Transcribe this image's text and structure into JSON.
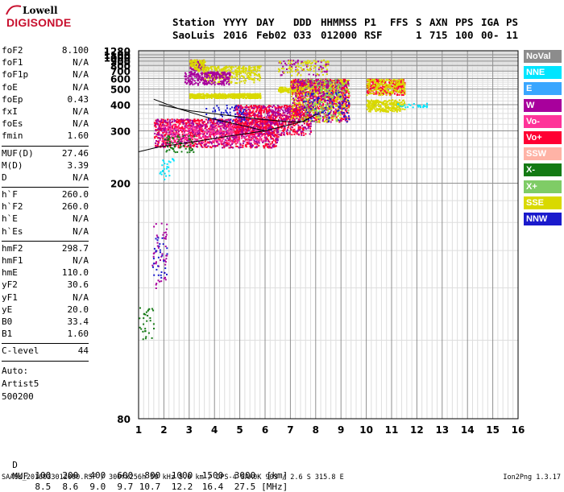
{
  "logo": {
    "line1": "Lowell",
    "line2": "DIGISONDE"
  },
  "header": {
    "row1": [
      "Station",
      "YYYY",
      "DAY",
      "DDD",
      "HHMMSS",
      "P1",
      "FFS",
      "S",
      "AXN",
      "PPS",
      "IGA",
      "PS"
    ],
    "row2": [
      "SaoLuis",
      "2016",
      "Feb02",
      "033",
      "012000",
      "RSF",
      "",
      "1",
      "715",
      "100",
      "00-",
      "11"
    ]
  },
  "parameters": {
    "group1": [
      {
        "key": "foF2",
        "value": "8.100"
      },
      {
        "key": "foF1",
        "value": "N/A"
      },
      {
        "key": "foF1p",
        "value": "N/A"
      },
      {
        "key": "foE",
        "value": "N/A"
      },
      {
        "key": "foEp",
        "value": "0.43"
      },
      {
        "key": "fxI",
        "value": "N/A"
      },
      {
        "key": "foEs",
        "value": "N/A"
      },
      {
        "key": "fmin",
        "value": "1.60"
      }
    ],
    "group2": [
      {
        "key": "MUF(D)",
        "value": "27.46"
      },
      {
        "key": "M(D)",
        "value": "3.39"
      },
      {
        "key": "D",
        "value": "N/A"
      }
    ],
    "group3": [
      {
        "key": "h`F",
        "value": "260.0"
      },
      {
        "key": "h`F2",
        "value": "260.0"
      },
      {
        "key": "h`E",
        "value": "N/A"
      },
      {
        "key": "h`Es",
        "value": "N/A"
      }
    ],
    "group4": [
      {
        "key": "hmF2",
        "value": "298.7"
      },
      {
        "key": "hmF1",
        "value": "N/A"
      },
      {
        "key": "hmE",
        "value": "110.0"
      },
      {
        "key": "yF2",
        "value": "30.6"
      },
      {
        "key": "yF1",
        "value": "N/A"
      },
      {
        "key": "yE",
        "value": "20.0"
      },
      {
        "key": "B0",
        "value": "33.4"
      },
      {
        "key": "B1",
        "value": "1.60"
      }
    ],
    "group5": [
      {
        "key": "C-level",
        "value": "44"
      }
    ],
    "auto": [
      "Auto:",
      "Artist5",
      "500200"
    ]
  },
  "legend": [
    {
      "label": "NoVal",
      "color": "#8c8c8c"
    },
    {
      "label": "NNE",
      "color": "#00e5ff"
    },
    {
      "label": "E",
      "color": "#39a6ff"
    },
    {
      "label": "W",
      "color": "#a8009c"
    },
    {
      "label": "Vo-",
      "color": "#ff3399"
    },
    {
      "label": "Vo+",
      "color": "#ff0033"
    },
    {
      "label": "SSW",
      "color": "#ffb3a6"
    },
    {
      "label": "X-",
      "color": "#147a14"
    },
    {
      "label": "X+",
      "color": "#7fcc66"
    },
    {
      "label": "SSE",
      "color": "#d9d900"
    },
    {
      "label": "NNW",
      "color": "#1a1acc"
    }
  ],
  "chart_data": {
    "type": "scatter",
    "x_ticks": [
      1,
      2,
      3,
      4,
      5,
      6,
      7,
      8,
      9,
      10,
      11,
      12,
      13,
      14,
      15,
      16
    ],
    "xlim": [
      1,
      16
    ],
    "y_ticks": [
      80,
      200,
      300,
      400,
      500,
      600,
      700,
      800,
      900,
      1000,
      1100,
      1280
    ],
    "ylim": [
      80,
      1280
    ],
    "y_scale": "reciprocal",
    "grid": true,
    "x_minor_per_major": 5,
    "y_minor_step": 20,
    "clusters": [
      {
        "color": "SSE",
        "x": [
          3.0,
          5.8
        ],
        "y": [
          440,
          470
        ],
        "n": 500
      },
      {
        "color": "SSE",
        "x": [
          3.5,
          5.8
        ],
        "y": [
          560,
          800
        ],
        "n": 300
      },
      {
        "color": "W",
        "x": [
          2.8,
          4.6
        ],
        "y": [
          540,
          700
        ],
        "n": 250
      },
      {
        "color": "W",
        "x": [
          3.0,
          3.6
        ],
        "y": [
          700,
          950
        ],
        "n": 80
      },
      {
        "color": "SSE",
        "x": [
          3.0,
          3.6
        ],
        "y": [
          700,
          950
        ],
        "n": 90
      },
      {
        "color": "Vo+",
        "x": [
          1.6,
          6.5
        ],
        "y": [
          260,
          340
        ],
        "n": 900
      },
      {
        "color": "W",
        "x": [
          1.6,
          6.5
        ],
        "y": [
          260,
          340
        ],
        "n": 500
      },
      {
        "color": "Vo-",
        "x": [
          1.8,
          6.0
        ],
        "y": [
          270,
          320
        ],
        "n": 300
      },
      {
        "color": "Vo+",
        "x": [
          4.8,
          7.8
        ],
        "y": [
          290,
          400
        ],
        "n": 600
      },
      {
        "color": "W",
        "x": [
          4.8,
          7.8
        ],
        "y": [
          290,
          400
        ],
        "n": 250
      },
      {
        "color": "SSE",
        "x": [
          6.5,
          7.5
        ],
        "y": [
          480,
          520
        ],
        "n": 150
      },
      {
        "color": "Vo+",
        "x": [
          7.0,
          9.3
        ],
        "y": [
          330,
          600
        ],
        "n": 700
      },
      {
        "color": "SSE",
        "x": [
          7.0,
          9.3
        ],
        "y": [
          330,
          600
        ],
        "n": 450
      },
      {
        "color": "W",
        "x": [
          7.0,
          9.3
        ],
        "y": [
          330,
          600
        ],
        "n": 300
      },
      {
        "color": "X+",
        "x": [
          7.5,
          9.3
        ],
        "y": [
          330,
          600
        ],
        "n": 150
      },
      {
        "color": "NNW",
        "x": [
          7.5,
          9.3
        ],
        "y": [
          330,
          480
        ],
        "n": 80
      },
      {
        "color": "Vo+",
        "x": [
          10.0,
          11.5
        ],
        "y": [
          460,
          600
        ],
        "n": 250
      },
      {
        "color": "SSE",
        "x": [
          10.0,
          11.5
        ],
        "y": [
          460,
          600
        ],
        "n": 200
      },
      {
        "color": "SSE",
        "x": [
          10.0,
          11.5
        ],
        "y": [
          370,
          430
        ],
        "n": 250
      },
      {
        "color": "W",
        "x": [
          6.5,
          8.5
        ],
        "y": [
          640,
          950
        ],
        "n": 60
      },
      {
        "color": "SSE",
        "x": [
          6.5,
          8.5
        ],
        "y": [
          640,
          950
        ],
        "n": 80
      },
      {
        "color": "NNE",
        "x": [
          11.2,
          12.4
        ],
        "y": [
          390,
          410
        ],
        "n": 25
      },
      {
        "color": "W",
        "x": [
          1.5,
          2.1
        ],
        "y": [
          120,
          160
        ],
        "n": 50
      },
      {
        "color": "NNW",
        "x": [
          1.5,
          2.1
        ],
        "y": [
          125,
          150
        ],
        "n": 30
      },
      {
        "color": "X-",
        "x": [
          1.0,
          1.6
        ],
        "y": [
          100,
          112
        ],
        "n": 30
      },
      {
        "color": "NNE",
        "x": [
          1.8,
          2.4
        ],
        "y": [
          205,
          240
        ],
        "n": 25
      },
      {
        "color": "NNW",
        "x": [
          3.6,
          5.2
        ],
        "y": [
          330,
          400
        ],
        "n": 60
      },
      {
        "color": "X-",
        "x": [
          2.0,
          3.2
        ],
        "y": [
          250,
          290
        ],
        "n": 60
      }
    ],
    "profile_lines": [
      {
        "x": [
          1.0,
          1.8,
          3.0,
          4.5,
          6.0,
          7.5,
          8.1
        ],
        "y": [
          250,
          260,
          270,
          285,
          300,
          330,
          360
        ]
      },
      {
        "x": [
          1.8,
          3.0,
          4.5,
          6.0,
          7.0,
          7.6
        ],
        "y": [
          400,
          372,
          352,
          336,
          328,
          330
        ]
      },
      {
        "x": [
          1.6,
          2.6,
          3.8,
          5.0,
          6.0
        ],
        "y": [
          430,
          380,
          342,
          318,
          300
        ]
      }
    ]
  },
  "bottom": {
    "d_label": "D",
    "d_values": [
      "100",
      "200",
      "400",
      "600",
      "800",
      "1000",
      "1500",
      "3000",
      "[km]"
    ],
    "muf_label": "MUF",
    "muf_values": [
      "8.5",
      "8.6",
      "9.0",
      "9.7",
      "10.7",
      "12.2",
      "16.4",
      "27.5",
      "[MHz]"
    ],
    "footer": "SAA0K_2016033012000.RSF / 300fx256h 50 kHz 5.0 km / DPS-4 SAA0K 903 / 2.6 S 315.8 E",
    "version": "Ion2Png 1.3.17"
  }
}
